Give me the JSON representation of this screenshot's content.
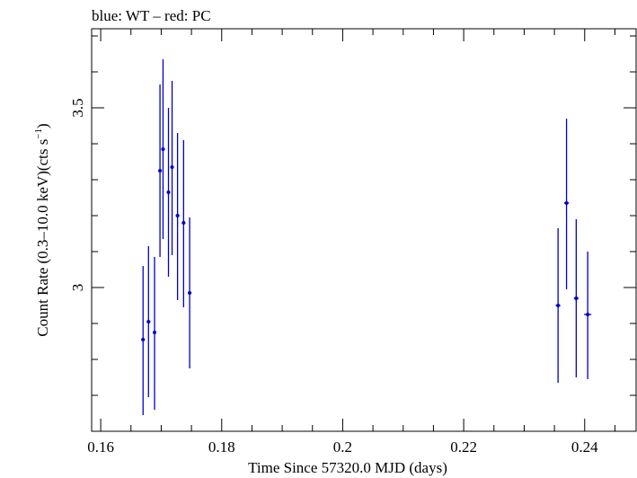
{
  "chart_data": {
    "type": "scatter",
    "title": "blue: WT – red: PC",
    "xlabel": "Time Since 57320.0 MJD (days)",
    "ylabel_prefix": "Count Rate (0.3–10.0 keV)(cts s",
    "ylabel_exp": "−1",
    "ylabel_suffix": ")",
    "xlim": [
      0.1585,
      0.2485
    ],
    "ylim": [
      2.6,
      3.72
    ],
    "x_ticks": [
      0.16,
      0.18,
      0.2,
      0.22,
      0.24
    ],
    "x_tick_labels": [
      "0.16",
      "0.18",
      "0.2",
      "0.22",
      "0.24"
    ],
    "y_ticks": [
      3.0,
      3.5
    ],
    "y_tick_labels": [
      "3",
      "3.5"
    ],
    "grid": false,
    "series": [
      {
        "color": "#0000cc",
        "points": [
          {
            "x": 0.167,
            "y": 2.855,
            "xerr": 0.0003,
            "ylo": 2.645,
            "yhi": 3.06
          },
          {
            "x": 0.1679,
            "y": 2.905,
            "xerr": 0.0003,
            "ylo": 2.695,
            "yhi": 3.115
          },
          {
            "x": 0.1689,
            "y": 2.875,
            "xerr": 0.0003,
            "ylo": 2.66,
            "yhi": 3.085
          },
          {
            "x": 0.1698,
            "y": 3.325,
            "xerr": 0.0003,
            "ylo": 3.085,
            "yhi": 3.565
          },
          {
            "x": 0.1703,
            "y": 3.385,
            "xerr": 0.0003,
            "ylo": 3.135,
            "yhi": 3.635
          },
          {
            "x": 0.1712,
            "y": 3.265,
            "xerr": 0.0003,
            "ylo": 3.03,
            "yhi": 3.5
          },
          {
            "x": 0.1718,
            "y": 3.335,
            "xerr": 0.0003,
            "ylo": 3.09,
            "yhi": 3.575
          },
          {
            "x": 0.1727,
            "y": 3.2,
            "xerr": 0.0003,
            "ylo": 2.965,
            "yhi": 3.43
          },
          {
            "x": 0.1737,
            "y": 3.18,
            "xerr": 0.0003,
            "ylo": 2.945,
            "yhi": 3.41
          },
          {
            "x": 0.1747,
            "y": 2.985,
            "xerr": 0.0003,
            "ylo": 2.775,
            "yhi": 3.195
          },
          {
            "x": 0.2356,
            "y": 2.95,
            "xerr": 0.0004,
            "ylo": 2.735,
            "yhi": 3.165
          },
          {
            "x": 0.237,
            "y": 3.235,
            "xerr": 0.0004,
            "ylo": 2.995,
            "yhi": 3.47
          },
          {
            "x": 0.2386,
            "y": 2.97,
            "xerr": 0.0004,
            "ylo": 2.75,
            "yhi": 3.19
          },
          {
            "x": 0.2405,
            "y": 2.925,
            "xerr": 0.0006,
            "ylo": 2.745,
            "yhi": 3.1
          }
        ]
      }
    ]
  }
}
